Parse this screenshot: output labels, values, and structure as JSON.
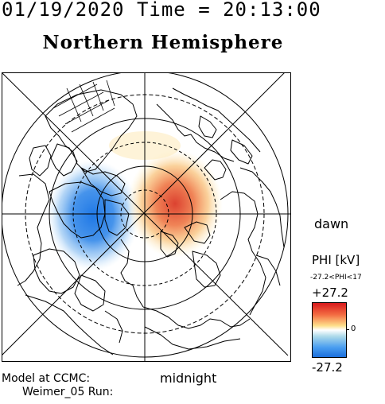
{
  "header": {
    "datetime": "01/19/2020 Time = 20:13:00"
  },
  "title": "Northern Hemisphere",
  "orientation": {
    "dawn": "dawn",
    "midnight": "midnight"
  },
  "colorbar": {
    "label": "PHI [kV]",
    "range_text": "-27.2<PHI<17",
    "max": "+27.2",
    "zero": "0",
    "min": "-27.2",
    "colors": {
      "positive": "#d7191c",
      "zero": "#ffffff",
      "negative": "#1b6fdc"
    }
  },
  "footer": {
    "line1": "Model at CCMC:",
    "line2": "Weimer_05 Run:"
  },
  "map": {
    "projection": "polar (north pole view)",
    "potential_cells": [
      {
        "sign": "negative",
        "side": "dusk/left",
        "color": "#2a86e8"
      },
      {
        "sign": "positive",
        "side": "dawn/right",
        "color": "#e0473a"
      }
    ]
  }
}
